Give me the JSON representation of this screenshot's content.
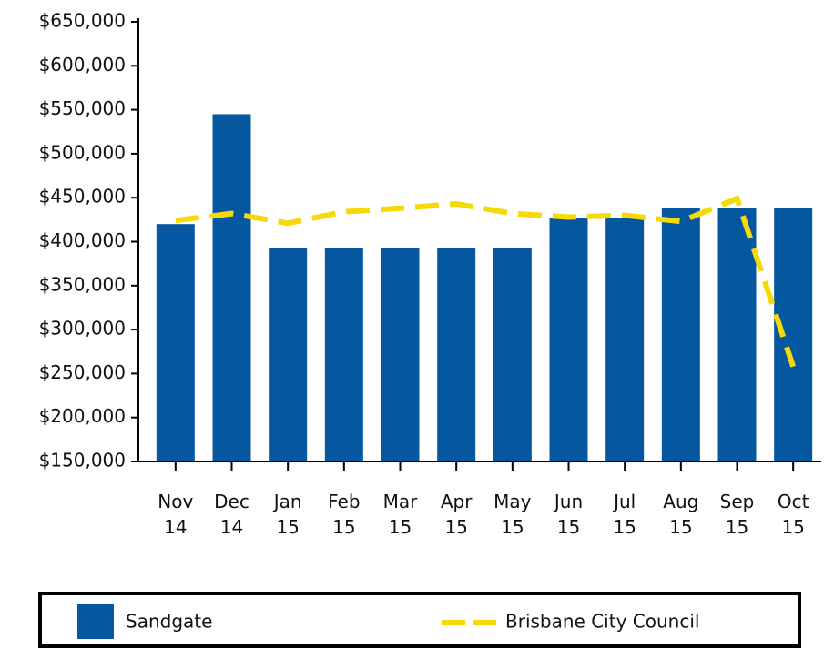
{
  "chart_data": {
    "type": "bar",
    "categories": [
      "Nov 14",
      "Dec 14",
      "Jan 15",
      "Feb 15",
      "Mar 15",
      "Apr 15",
      "May 15",
      "Jun 15",
      "Jul 15",
      "Aug 15",
      "Sep 15",
      "Oct 15"
    ],
    "series": [
      {
        "name": "Sandgate",
        "type": "bar",
        "color": "#0558a0",
        "values": [
          420000,
          545000,
          393000,
          393000,
          393000,
          393000,
          393000,
          427000,
          427000,
          438000,
          438000,
          438000
        ]
      },
      {
        "name": "Brisbane City Council",
        "type": "line",
        "color": "#f5d90a",
        "dashed": true,
        "values": [
          424000,
          432000,
          421000,
          434000,
          438000,
          443000,
          432000,
          428000,
          430000,
          423000,
          449000,
          258000
        ]
      }
    ],
    "ylim": [
      150000,
      650000
    ],
    "yticks": [
      {
        "value": 150000,
        "label": "$150,000"
      },
      {
        "value": 200000,
        "label": "$200,000"
      },
      {
        "value": 250000,
        "label": "$250,000"
      },
      {
        "value": 300000,
        "label": "$300,000"
      },
      {
        "value": 350000,
        "label": "$350,000"
      },
      {
        "value": 400000,
        "label": "$400,000"
      },
      {
        "value": 450000,
        "label": "$450,000"
      },
      {
        "value": 500000,
        "label": "$500,000"
      },
      {
        "value": 550000,
        "label": "$550,000"
      },
      {
        "value": 600000,
        "label": "$600,000"
      },
      {
        "value": 650000,
        "label": "$650,000"
      }
    ],
    "grid": false,
    "legend": "bottom"
  }
}
